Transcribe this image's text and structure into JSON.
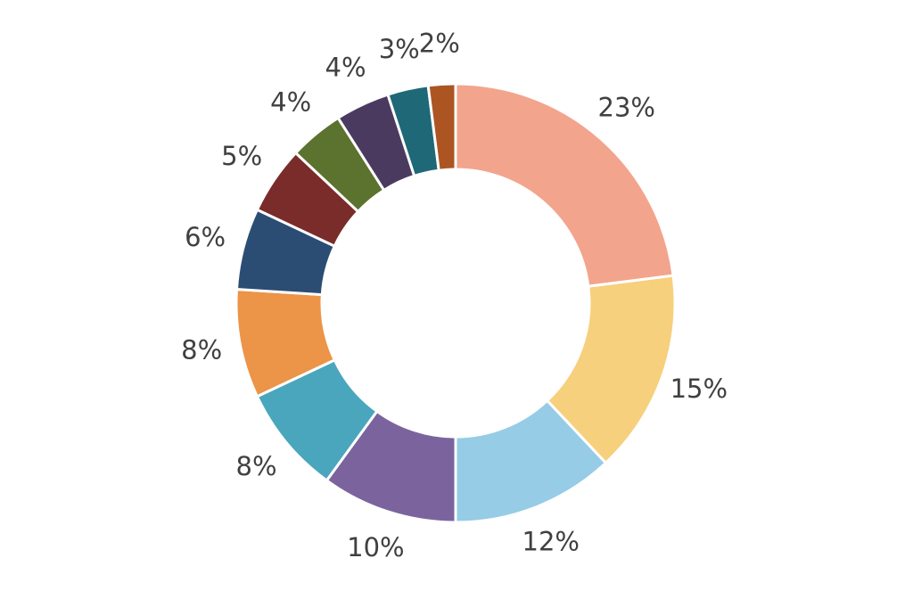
{
  "chart_data": {
    "type": "pie",
    "values": [
      23,
      15,
      12,
      10,
      8,
      8,
      6,
      5,
      4,
      4,
      3,
      2
    ],
    "value_labels": [
      "23%",
      "15%",
      "12%",
      "10%",
      "8%",
      "8%",
      "6%",
      "5%",
      "4%",
      "4%",
      "3%",
      "2%"
    ],
    "colors": [
      "#f2a58c",
      "#f6d07c",
      "#96cce6",
      "#7b649e",
      "#4aa6bd",
      "#ec9447",
      "#2c4d73",
      "#7a2c2a",
      "#5c722f",
      "#4b3a60",
      "#1f6878",
      "#ac5523"
    ]
  }
}
